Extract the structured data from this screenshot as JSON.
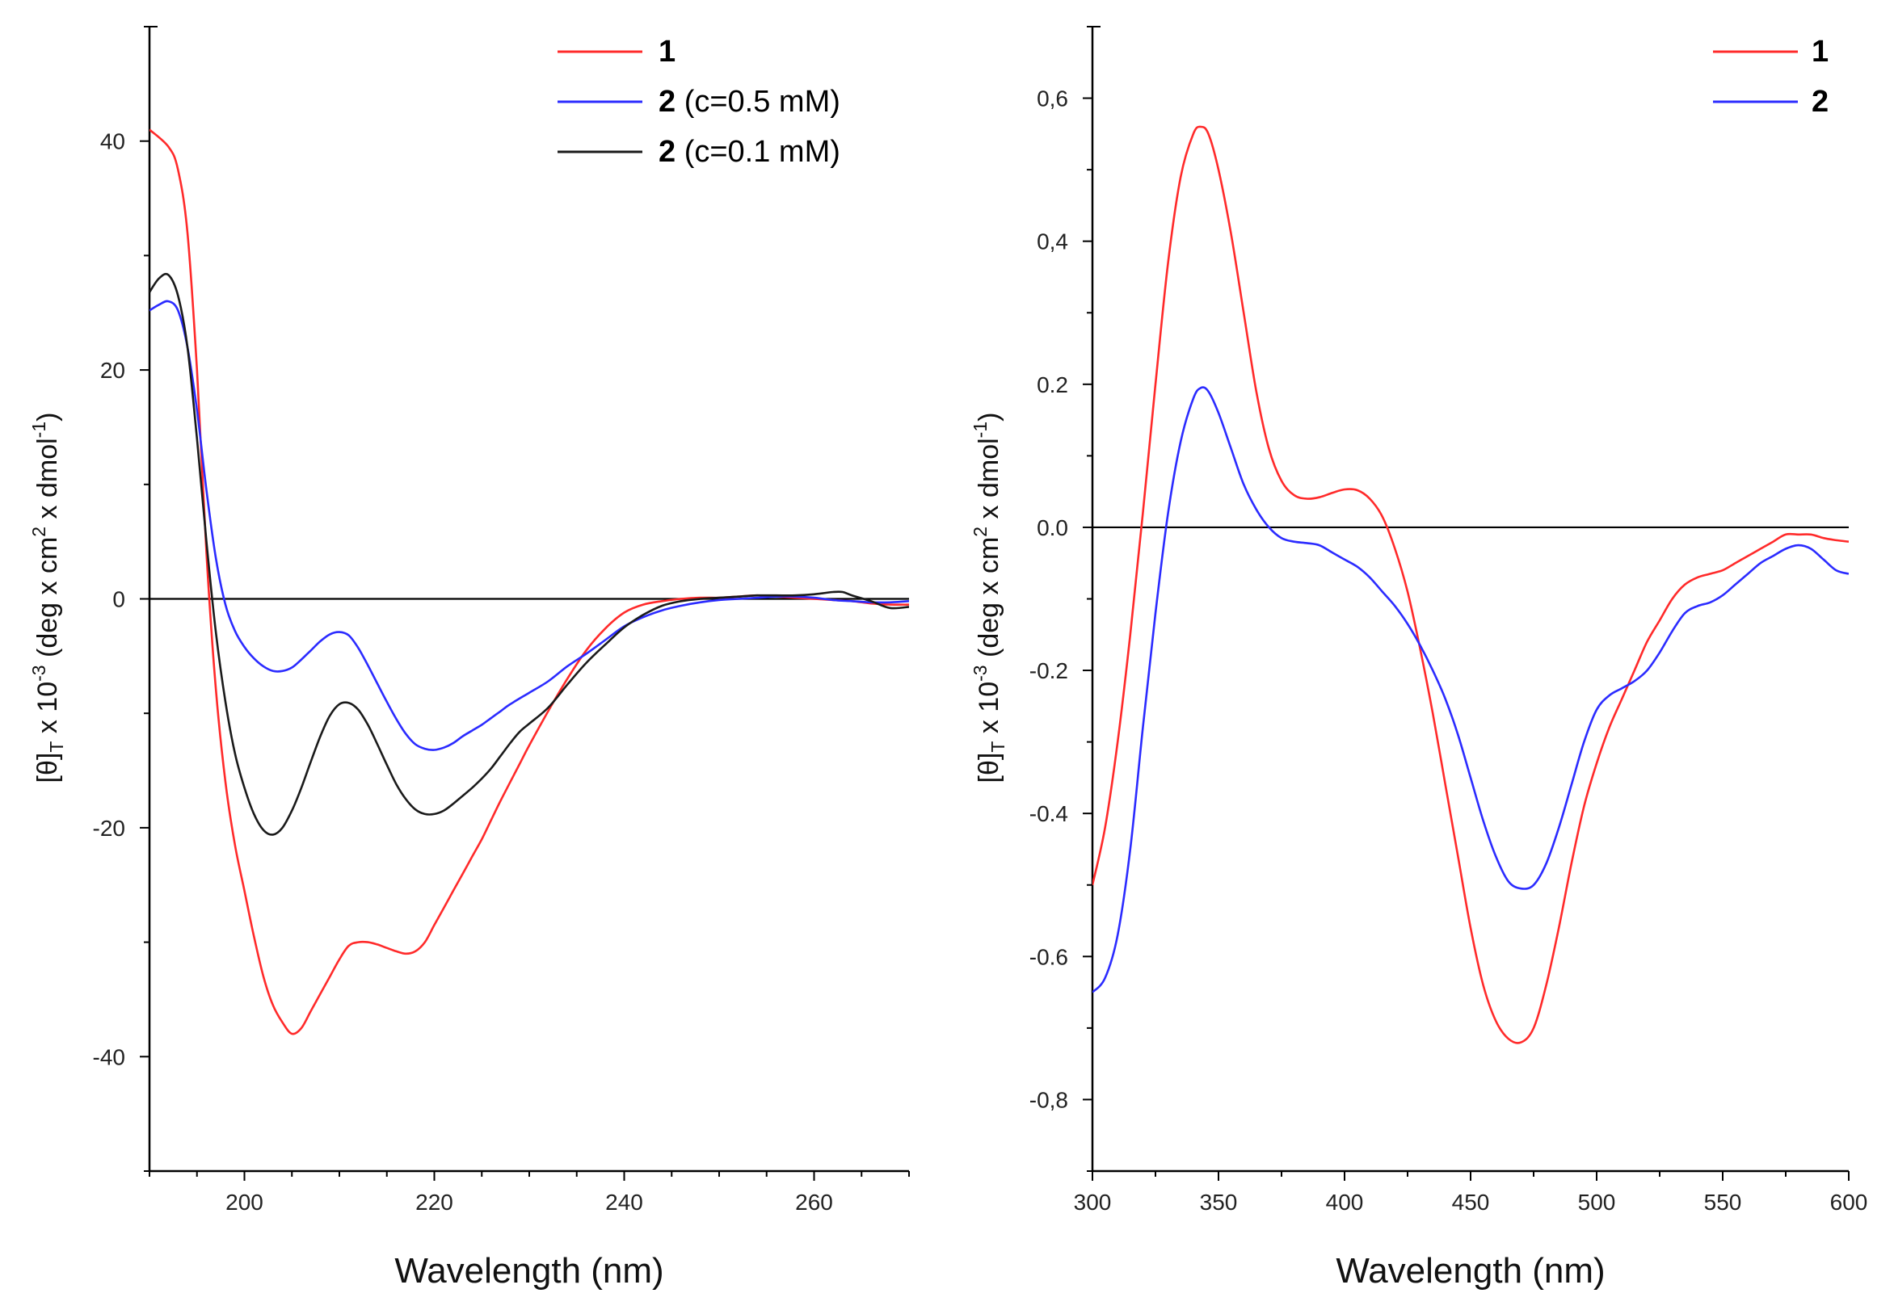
{
  "chart_data": [
    {
      "type": "line",
      "xlabel": "Wavelength (nm)",
      "ylabel": {
        "open": "[θ]",
        "sub": "T",
        "a": " x 10",
        "exp1": "-3",
        "b": " (deg x cm",
        "exp2": "2",
        "c": " x dmol",
        "exp3": "-1",
        "close": ")"
      },
      "xlim": [
        190,
        270
      ],
      "ylim": [
        -50,
        50
      ],
      "xticks": [
        200,
        220,
        240,
        260
      ],
      "yticks": [
        -40,
        -20,
        0,
        20,
        40
      ],
      "ytick_labels": [
        "-40",
        "-20",
        "0",
        "20",
        "40"
      ],
      "zero_line": true,
      "legend_position": "top-right",
      "series": [
        {
          "name": "1",
          "legend_label": "1",
          "legend_extra": "",
          "color": "#ff2a2a",
          "x": [
            190,
            192,
            193,
            194,
            195,
            196,
            197,
            198,
            199,
            200,
            201,
            202,
            203,
            204,
            205,
            206,
            207,
            208,
            209,
            210,
            211,
            212,
            213,
            214,
            215,
            216,
            217,
            218,
            219,
            220,
            221,
            222,
            223,
            224,
            225,
            226,
            227,
            228,
            229,
            230,
            232,
            234,
            236,
            238,
            240,
            242,
            244,
            246,
            248,
            250,
            252,
            254,
            256,
            258,
            260,
            262,
            264,
            266,
            268,
            270
          ],
          "y": [
            41,
            39.5,
            37.5,
            32,
            20,
            4,
            -8,
            -16,
            -21.5,
            -25.5,
            -29.5,
            -33,
            -35.5,
            -37,
            -38,
            -37.5,
            -36,
            -34.5,
            -33,
            -31.5,
            -30.3,
            -30,
            -30,
            -30.2,
            -30.5,
            -30.8,
            -31,
            -30.8,
            -30,
            -28.5,
            -27,
            -25.5,
            -24,
            -22.5,
            -21,
            -19.3,
            -17.6,
            -16,
            -14.4,
            -12.8,
            -9.8,
            -7,
            -4.5,
            -2.6,
            -1.2,
            -0.5,
            -0.2,
            0,
            0.1,
            0.1,
            0.2,
            0.3,
            0.2,
            0.1,
            0,
            -0.1,
            -0.2,
            -0.4,
            -0.5,
            -0.5
          ]
        },
        {
          "name": "2 (c=0.5 mM)",
          "legend_label": "2",
          "legend_extra": " (c=0.5 mM)",
          "color": "#2b2bff",
          "x": [
            190,
            191,
            192,
            193,
            194,
            195,
            196,
            197,
            198,
            199,
            200,
            201,
            202,
            203,
            204,
            205,
            206,
            207,
            208,
            209,
            210,
            211,
            212,
            213,
            214,
            215,
            216,
            217,
            218,
            219,
            220,
            221,
            222,
            223,
            224,
            225,
            226,
            227,
            228,
            230,
            232,
            234,
            236,
            238,
            240,
            242,
            244,
            246,
            248,
            250,
            252,
            254,
            256,
            258,
            260,
            262,
            264,
            266,
            268,
            270
          ],
          "y": [
            25.2,
            25.7,
            26,
            25.2,
            22,
            16.5,
            9.5,
            3.5,
            -0.5,
            -2.8,
            -4.2,
            -5.2,
            -5.9,
            -6.3,
            -6.3,
            -6,
            -5.3,
            -4.5,
            -3.7,
            -3.1,
            -2.9,
            -3.2,
            -4.3,
            -5.8,
            -7.4,
            -9,
            -10.5,
            -11.8,
            -12.7,
            -13.1,
            -13.2,
            -13,
            -12.6,
            -12,
            -11.5,
            -11,
            -10.4,
            -9.8,
            -9.2,
            -8.2,
            -7.2,
            -5.9,
            -4.8,
            -3.6,
            -2.4,
            -1.6,
            -1,
            -0.6,
            -0.3,
            -0.1,
            0,
            0.1,
            0.2,
            0.2,
            0.1,
            -0.1,
            -0.2,
            -0.3,
            -0.3,
            -0.2
          ]
        },
        {
          "name": "2 (c=0.1 mM)",
          "legend_label": "2",
          "legend_extra": " (c=0.1 mM)",
          "color": "#1a1a1a",
          "x": [
            190,
            191,
            192,
            193,
            194,
            195,
            196,
            197,
            198,
            199,
            200,
            201,
            202,
            203,
            204,
            205,
            206,
            207,
            208,
            209,
            210,
            211,
            212,
            213,
            214,
            215,
            216,
            217,
            218,
            219,
            220,
            221,
            222,
            223,
            224,
            225,
            226,
            227,
            228,
            229,
            230,
            232,
            234,
            236,
            238,
            240,
            242,
            244,
            246,
            248,
            250,
            252,
            254,
            256,
            258,
            260,
            262,
            263,
            264,
            266,
            268,
            270
          ],
          "y": [
            26.8,
            28,
            28.3,
            26.5,
            22,
            14,
            5,
            -3,
            -9,
            -13.5,
            -16.5,
            -18.8,
            -20.2,
            -20.6,
            -20,
            -18.5,
            -16.5,
            -14.2,
            -12,
            -10.2,
            -9.2,
            -9.1,
            -9.7,
            -11,
            -12.7,
            -14.5,
            -16.2,
            -17.5,
            -18.4,
            -18.8,
            -18.8,
            -18.5,
            -17.9,
            -17.2,
            -16.5,
            -15.7,
            -14.8,
            -13.7,
            -12.6,
            -11.6,
            -10.9,
            -9.5,
            -7.5,
            -5.6,
            -4,
            -2.5,
            -1.4,
            -0.6,
            -0.2,
            0,
            0.1,
            0.2,
            0.3,
            0.3,
            0.3,
            0.4,
            0.6,
            0.6,
            0.3,
            -0.2,
            -0.8,
            -0.7
          ]
        }
      ]
    },
    {
      "type": "line",
      "xlabel": "Wavelength (nm)",
      "ylabel": {
        "open": "[θ]",
        "sub": "T",
        "a": " x 10",
        "exp1": "-3",
        "b": " (deg x cm",
        "exp2": "2",
        "c": " x dmol",
        "exp3": "-1",
        "close": ")"
      },
      "xlim": [
        300,
        600
      ],
      "ylim": [
        -0.9,
        0.7
      ],
      "xticks": [
        300,
        350,
        400,
        450,
        500,
        550,
        600
      ],
      "yticks": [
        -0.8,
        -0.6,
        -0.4,
        -0.2,
        0.0,
        0.2,
        0.4,
        0.6
      ],
      "ytick_labels": [
        "-0,8",
        "-0.6",
        "-0.4",
        "-0.2",
        "0.0",
        "0.2",
        "0,4",
        "0,6"
      ],
      "zero_line": true,
      "legend_position": "top-right",
      "series": [
        {
          "name": "1",
          "legend_label": "1",
          "legend_extra": "",
          "color": "#ff2a2a",
          "x": [
            300,
            305,
            310,
            315,
            320,
            325,
            330,
            335,
            340,
            343,
            346,
            350,
            355,
            360,
            365,
            370,
            375,
            380,
            385,
            390,
            395,
            400,
            405,
            410,
            415,
            420,
            425,
            430,
            435,
            440,
            445,
            450,
            455,
            460,
            465,
            470,
            475,
            480,
            485,
            490,
            495,
            500,
            505,
            510,
            515,
            520,
            525,
            530,
            535,
            540,
            545,
            550,
            555,
            560,
            565,
            570,
            575,
            580,
            585,
            590,
            595,
            600
          ],
          "y": [
            -0.5,
            -0.42,
            -0.3,
            -0.15,
            0.02,
            0.2,
            0.37,
            0.49,
            0.55,
            0.56,
            0.55,
            0.5,
            0.41,
            0.3,
            0.19,
            0.11,
            0.065,
            0.045,
            0.04,
            0.042,
            0.048,
            0.053,
            0.052,
            0.04,
            0.015,
            -0.03,
            -0.09,
            -0.17,
            -0.26,
            -0.36,
            -0.46,
            -0.56,
            -0.64,
            -0.69,
            -0.715,
            -0.72,
            -0.7,
            -0.64,
            -0.56,
            -0.47,
            -0.39,
            -0.33,
            -0.28,
            -0.24,
            -0.2,
            -0.16,
            -0.13,
            -0.1,
            -0.08,
            -0.07,
            -0.065,
            -0.06,
            -0.05,
            -0.04,
            -0.03,
            -0.02,
            -0.01,
            -0.01,
            -0.01,
            -0.015,
            -0.018,
            -0.02
          ]
        },
        {
          "name": "2",
          "legend_label": "2",
          "legend_extra": "",
          "color": "#2b2bff",
          "x": [
            300,
            305,
            310,
            315,
            320,
            325,
            330,
            335,
            340,
            343,
            346,
            350,
            355,
            360,
            365,
            370,
            375,
            380,
            385,
            390,
            395,
            400,
            405,
            410,
            415,
            420,
            425,
            430,
            435,
            440,
            445,
            450,
            455,
            460,
            465,
            470,
            475,
            480,
            485,
            490,
            495,
            500,
            505,
            510,
            515,
            520,
            525,
            530,
            535,
            540,
            545,
            550,
            555,
            560,
            565,
            570,
            575,
            580,
            585,
            590,
            595,
            600
          ],
          "y": [
            -0.65,
            -0.63,
            -0.57,
            -0.45,
            -0.28,
            -0.12,
            0.02,
            0.12,
            0.18,
            0.195,
            0.19,
            0.16,
            0.11,
            0.06,
            0.025,
            0.0,
            -0.015,
            -0.02,
            -0.022,
            -0.025,
            -0.035,
            -0.045,
            -0.055,
            -0.07,
            -0.09,
            -0.11,
            -0.135,
            -0.165,
            -0.2,
            -0.24,
            -0.29,
            -0.35,
            -0.41,
            -0.46,
            -0.495,
            -0.505,
            -0.5,
            -0.47,
            -0.42,
            -0.36,
            -0.3,
            -0.255,
            -0.235,
            -0.225,
            -0.215,
            -0.2,
            -0.175,
            -0.145,
            -0.12,
            -0.11,
            -0.105,
            -0.095,
            -0.08,
            -0.065,
            -0.05,
            -0.04,
            -0.03,
            -0.025,
            -0.03,
            -0.045,
            -0.06,
            -0.065
          ]
        }
      ]
    }
  ]
}
